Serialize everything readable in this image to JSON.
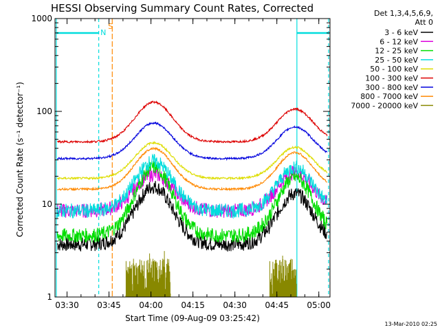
{
  "chart_data": {
    "type": "line",
    "title": "HESSI Observing Summary Count Rates, Corrected",
    "xlabel": "Start Time (09-Aug-09 03:25:42)",
    "ylabel": "Corrected Count Rate (s⁻¹ detector⁻¹)",
    "y_scale": "log",
    "ylim": [
      1,
      1000
    ],
    "xlim_minutes": [
      "03:25:42",
      "05:04:00"
    ],
    "x_tick_labels": [
      "03:30",
      "03:45",
      "04:00",
      "04:15",
      "04:30",
      "04:45",
      "05:00"
    ],
    "y_tick_labels": [
      "1",
      "10",
      "100",
      "1000"
    ],
    "grid": false,
    "legend_position": "outside-right",
    "legend_header": [
      "Det 1,3,4,5,6,9,",
      "Att 0"
    ],
    "series": [
      {
        "name": "3 - 6 keV",
        "color": "#000000",
        "base": 3.7,
        "peak1": 15.5,
        "peak2": 13.0
      },
      {
        "name": "6 - 12 keV",
        "color": "#dd00dd",
        "base": 8.5,
        "peak1": 21.0,
        "peak2": 22.0
      },
      {
        "name": "12 - 25 keV",
        "color": "#00dd00",
        "base": 4.6,
        "peak1": 25.0,
        "peak2": 19.5
      },
      {
        "name": "25 - 50 keV",
        "color": "#00dddd",
        "base": 8.5,
        "peak1": 29.0,
        "peak2": 25.0
      },
      {
        "name": "50 - 100 keV",
        "color": "#dddd00",
        "base": 19.0,
        "peak1": 46.0,
        "peak2": 41.0
      },
      {
        "name": "100 - 300 keV",
        "color": "#dd0000",
        "base": 47.0,
        "peak1": 126.0,
        "peak2": 106.0
      },
      {
        "name": "300 - 800 keV",
        "color": "#0000dd",
        "base": 31.0,
        "peak1": 75.0,
        "peak2": 68.0
      },
      {
        "name": "800 - 7000 keV",
        "color": "#ff8800",
        "base": 14.5,
        "peak1": 40.0,
        "peak2": 36.0
      },
      {
        "name": "7000 - 20000 keV",
        "color": "#888800",
        "base": 1.0,
        "peak1": 2.3,
        "peak2": 2.3
      }
    ],
    "flags": [
      {
        "label": "S",
        "color": "#ff8800",
        "x": "03:46"
      },
      {
        "label": "N",
        "color": "#00dddd",
        "x": "03:41"
      }
    ],
    "footer": "13-Mar-2010 02:25"
  }
}
